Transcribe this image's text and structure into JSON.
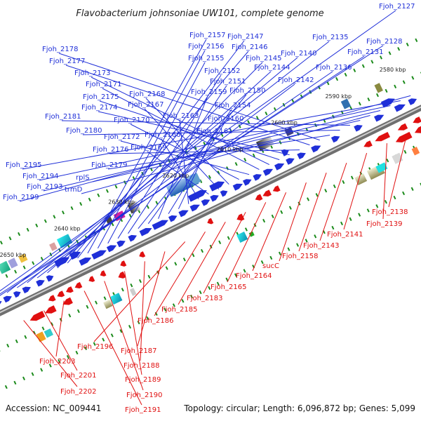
{
  "title": "Flavobacterium johnsoniae UW101, complete genome",
  "accession": "Accession: NC_009441",
  "stats": "Topology: circular; Length: 6,096,872 bp; Genes: 5,099",
  "colors": {
    "forward": "#1f2fd8",
    "reverse": "#e01010",
    "backbone": "#888888",
    "tick": "#1a8a1a"
  },
  "ticks": [
    "2580 kbp",
    "2590 kbp",
    "2600 kbp",
    "2610 kbp",
    "2620 kbp",
    "2630 kbp",
    "2640 kbp",
    "2650 kbp"
  ],
  "forward_labels": [
    "Fjoh_2127",
    "Fjoh_2128",
    "Fjoh_2131",
    "Fjoh_2135",
    "Fjoh_2136",
    "Fjoh_2140",
    "Fjoh_2142",
    "Fjoh_2144",
    "Fjoh_2145",
    "Fjoh_2146",
    "Fjoh_2147",
    "Fjoh_2157",
    "Fjoh_2156",
    "Fjoh_2155",
    "Fjoh_2152",
    "Fjoh_2151",
    "Fjoh_2150",
    "Fjoh_2154",
    "Fjoh_2159",
    "Fjoh_2160",
    "Fjoh_2161",
    "Fjoh_2163",
    "Fjoh_2166",
    "Fjoh_2169",
    "Fjoh_2167",
    "Fjoh_2168",
    "Fjoh_2170",
    "Fjoh_2172",
    "Fjoh_2171",
    "Fjoh_2173",
    "Fjoh_2175",
    "Fjoh_2174",
    "Fjoh_2176",
    "Fjoh_2177",
    "Fjoh_2178",
    "Fjoh_2179",
    "Fjoh_2180",
    "Fjoh_2181",
    "rplS",
    "trmD",
    "Fjoh_2193",
    "Fjoh_2194",
    "Fjoh_2195",
    "Fjoh_2199"
  ],
  "reverse_labels": [
    "Fjoh_2138",
    "Fjoh_2139",
    "Fjoh_2141",
    "Fjoh_2143",
    "Fjoh_2158",
    "sucC",
    "Fjoh_2164",
    "Fjoh_2165",
    "Fjoh_2183",
    "Fjoh_2185",
    "Fjoh_2186",
    "Fjoh_2196",
    "Fjoh_2187",
    "Fjoh_2188",
    "Fjoh_2189",
    "Fjoh_2190",
    "Fjoh_2191",
    "Fjoh_2203",
    "Fjoh_2201",
    "Fjoh_2202"
  ]
}
